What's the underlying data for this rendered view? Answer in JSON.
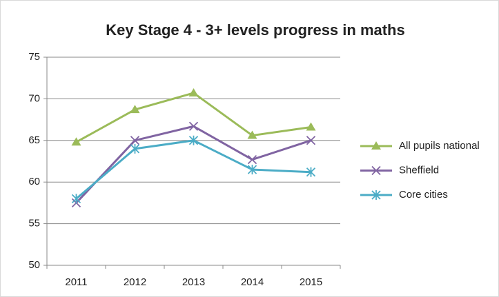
{
  "chart_data": {
    "type": "line",
    "title": "Key Stage 4 - 3+ levels progress in maths",
    "categories": [
      "2011",
      "2012",
      "2013",
      "2014",
      "2015"
    ],
    "series": [
      {
        "name": "All pupils national",
        "color": "#9bbb59",
        "marker": "triangle",
        "values": [
          64.8,
          68.7,
          70.7,
          65.6,
          66.6
        ]
      },
      {
        "name": "Sheffield",
        "color": "#8064a2",
        "marker": "x",
        "values": [
          57.5,
          65.0,
          66.7,
          62.7,
          65.0
        ]
      },
      {
        "name": "Core cities",
        "color": "#4bacc6",
        "marker": "asterisk",
        "values": [
          58.0,
          64.0,
          65.0,
          61.5,
          61.2
        ]
      }
    ],
    "ylim": [
      50,
      75
    ],
    "yticks": [
      50,
      55,
      60,
      65,
      70,
      75
    ],
    "grid": true,
    "legend": "right"
  }
}
